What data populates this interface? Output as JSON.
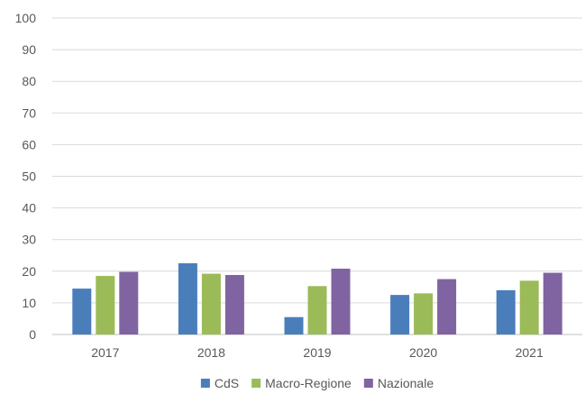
{
  "chart_data": {
    "type": "bar",
    "categories": [
      "2017",
      "2018",
      "2019",
      "2020",
      "2021"
    ],
    "series": [
      {
        "name": "CdS",
        "color": "#4A7EBB",
        "values": [
          14.5,
          22.5,
          5.5,
          12.5,
          14
        ]
      },
      {
        "name": "Macro-Regione",
        "color": "#9BBB59",
        "values": [
          18.5,
          19.2,
          15.3,
          13,
          17
        ]
      },
      {
        "name": "Nazionale",
        "color": "#8064A2",
        "values": [
          19.8,
          18.8,
          20.8,
          17.5,
          19.5
        ]
      }
    ],
    "yticks": [
      "0",
      "10",
      "20",
      "30",
      "40",
      "50",
      "60",
      "70",
      "80",
      "90",
      "100"
    ],
    "ylim": [
      0,
      100
    ],
    "grid": true,
    "legend_position": "bottom",
    "title": "",
    "xlabel": "",
    "ylabel": ""
  }
}
